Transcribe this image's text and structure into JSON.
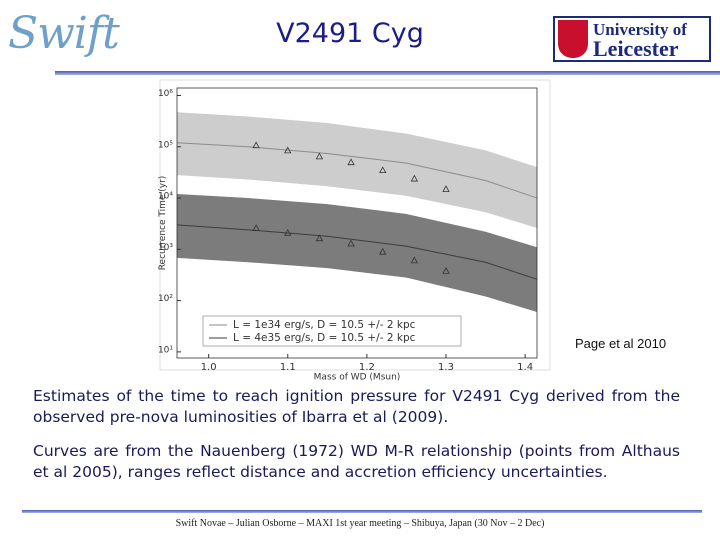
{
  "header": {
    "title": "V2491 Cyg",
    "logo_left": "Swift",
    "logo_right": [
      "University of",
      "Leicester"
    ]
  },
  "chart_data": {
    "type": "line",
    "x_label": "Mass of WD (Msun)",
    "y_label": "Recurrence Time (yr)",
    "x": [
      1.06,
      1.1,
      1.14,
      1.18,
      1.22,
      1.26,
      1.3
    ],
    "curve_x": [
      0.96,
      1.05,
      1.15,
      1.25,
      1.35,
      1.415
    ],
    "series": [
      {
        "name": "L = 1e34 erg/s, D = 10.5 +/- 2 kpc",
        "color": "#8c8c8c",
        "band_color": "#cdcdcd",
        "values": [
          107000,
          85000,
          65000,
          50000,
          35000,
          24000,
          15000
        ],
        "curve": [
          120000,
          100000,
          74000,
          48000,
          22000,
          10000
        ],
        "upper": [
          470000,
          390000,
          290000,
          180000,
          85000,
          40000
        ],
        "lower": [
          28000,
          23000,
          17000,
          11000,
          5300,
          2600
        ]
      },
      {
        "name": "L = 4e35 erg/s, D = 10.5 +/- 2 kpc",
        "color": "#3c3c3c",
        "band_color": "#7c7c7c",
        "values": [
          2600,
          2100,
          1650,
          1300,
          900,
          610,
          380
        ],
        "curve": [
          3000,
          2400,
          1800,
          1150,
          560,
          260
        ],
        "upper": [
          12000,
          10000,
          7600,
          4900,
          2200,
          1100
        ],
        "lower": [
          680,
          560,
          430,
          280,
          120,
          60
        ]
      }
    ],
    "xlim": [
      0.96,
      1.415
    ],
    "xticks": [
      {
        "value": 1,
        "label": "1.0"
      },
      1.1,
      1.2,
      1.3,
      1.4
    ],
    "ylim": [
      7.6,
      1400000
    ],
    "yticks": [
      {
        "value": 10,
        "label": "10¹"
      },
      {
        "value": 100,
        "label": "10²"
      },
      {
        "value": 1000,
        "label": "10³"
      },
      {
        "value": 10000,
        "label": "10⁴"
      },
      {
        "value": 100000,
        "label": "10⁵"
      },
      {
        "value": 1000000,
        "label": "10⁶"
      }
    ],
    "log_y": true,
    "grid": false,
    "legend": "lower left"
  },
  "credit": "Page et al 2010",
  "paragraphs": [
    "Estimates of the time to reach ignition pressure for V2491 Cyg derived from the observed pre-nova luminosities of Ibarra et al (2009).",
    "Curves are from the Nauenberg (1972) WD M-R relationship (points from Althaus et al 2005), ranges reflect distance and accretion efficiency uncertainties."
  ],
  "footer": "Swift Novae – Julian Osborne – MAXI 1st year meeting – Shibuya, Japan (30 Nov – 2 Dec)"
}
